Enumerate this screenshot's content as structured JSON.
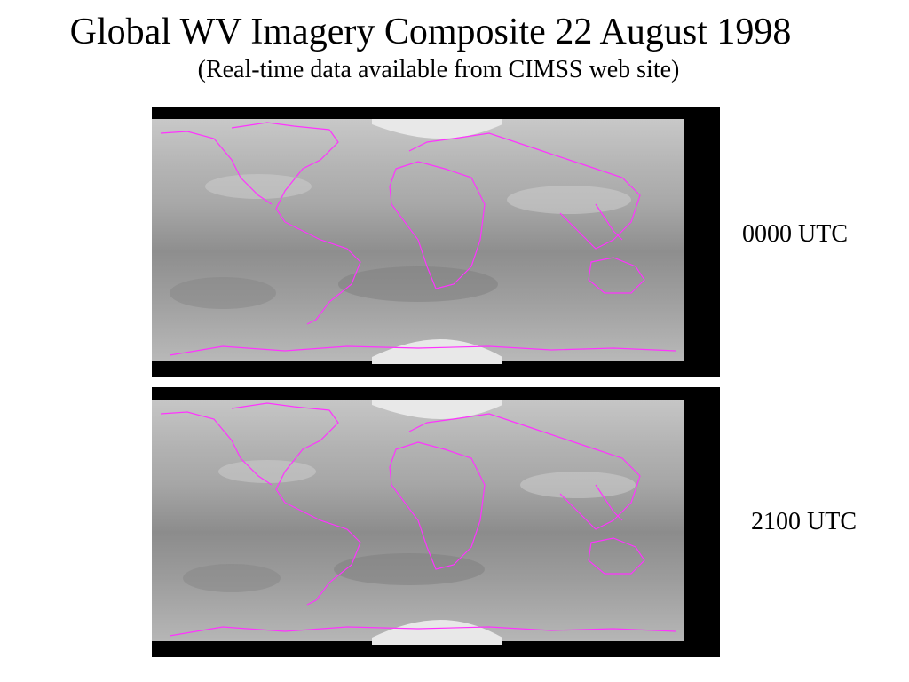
{
  "slide": {
    "title": "Global WV Imagery Composite 22 August 1998",
    "subtitle": "(Real-time data available from CIMSS web site)"
  },
  "panels": [
    {
      "label": "0000 UTC"
    },
    {
      "label": "2100 UTC"
    }
  ],
  "colors": {
    "coastline": "#ff33ff",
    "background": "#000000",
    "imagery_gray": "#9a9a9a"
  }
}
